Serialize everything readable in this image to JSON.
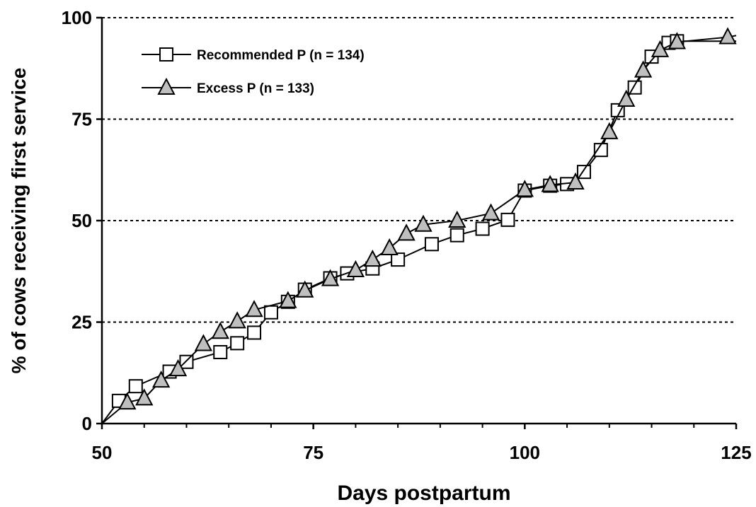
{
  "chart_data": {
    "type": "line",
    "xlabel": "Days postpartum",
    "ylabel": "% of cows receiving first service",
    "xlim": [
      50,
      125
    ],
    "ylim": [
      0,
      100
    ],
    "x_ticks": [
      "50",
      "75",
      "100",
      "125"
    ],
    "y_ticks": [
      "0",
      "25",
      "50",
      "75",
      "100"
    ],
    "grid": "horizontal dashed at 25, 50, 75, 100",
    "legend_position": "top-left",
    "series": [
      {
        "name": "Recommended P (n = 134)",
        "marker": "square",
        "marker_fill": "#ffffff",
        "points": [
          [
            50,
            0
          ],
          [
            52,
            5.6
          ],
          [
            54,
            9.2
          ],
          [
            58,
            12.8
          ],
          [
            60,
            15.2
          ],
          [
            64,
            17.6
          ],
          [
            66,
            19.8
          ],
          [
            68,
            22.4
          ],
          [
            70,
            27.4
          ],
          [
            72,
            30.0
          ],
          [
            74,
            33.0
          ],
          [
            77,
            35.8
          ],
          [
            79,
            37.0
          ],
          [
            82,
            38.2
          ],
          [
            85,
            40.4
          ],
          [
            89,
            44.2
          ],
          [
            92,
            46.4
          ],
          [
            95,
            48.0
          ],
          [
            98,
            50.2
          ],
          [
            100,
            57.4
          ],
          [
            103,
            58.6
          ],
          [
            105,
            59.0
          ],
          [
            107,
            62.0
          ],
          [
            109,
            67.4
          ],
          [
            111,
            77.2
          ],
          [
            113,
            82.8
          ],
          [
            115,
            90.4
          ],
          [
            117,
            93.8
          ],
          [
            118,
            94.2
          ],
          [
            125,
            94.2
          ]
        ]
      },
      {
        "name": "Excess P (n = 133)",
        "marker": "triangle",
        "marker_fill": "#bfbfbf",
        "points": [
          [
            50,
            0
          ],
          [
            53,
            5.2
          ],
          [
            55,
            6.2
          ],
          [
            57,
            10.6
          ],
          [
            59,
            13.4
          ],
          [
            62,
            19.6
          ],
          [
            64,
            22.6
          ],
          [
            66,
            25.2
          ],
          [
            68,
            28.0
          ],
          [
            72,
            30.2
          ],
          [
            74,
            32.8
          ],
          [
            77,
            35.6
          ],
          [
            80,
            37.8
          ],
          [
            82,
            40.4
          ],
          [
            84,
            43.2
          ],
          [
            86,
            46.8
          ],
          [
            88,
            49.0
          ],
          [
            92,
            50.0
          ],
          [
            96,
            51.8
          ],
          [
            100,
            57.6
          ],
          [
            103,
            58.8
          ],
          [
            106,
            59.4
          ],
          [
            110,
            71.8
          ],
          [
            112,
            79.8
          ],
          [
            114,
            87.0
          ],
          [
            116,
            92.0
          ],
          [
            118,
            94.0
          ],
          [
            124,
            95.2
          ],
          [
            125,
            95.6
          ]
        ]
      }
    ]
  }
}
